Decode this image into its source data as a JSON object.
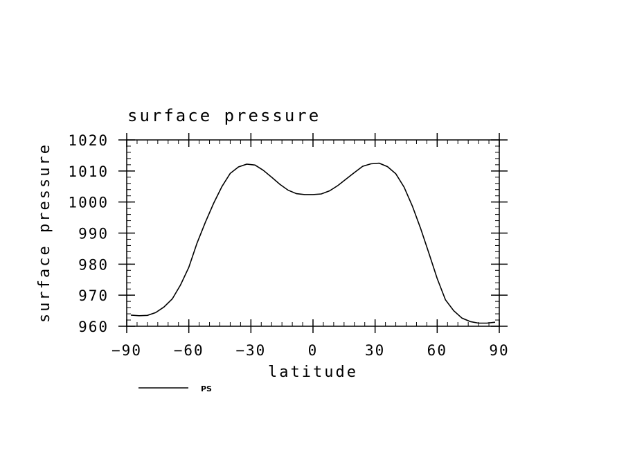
{
  "chart_data": {
    "type": "line",
    "title": "surface pressure",
    "xlabel": "latitude",
    "ylabel": "surface pressure",
    "xlim": [
      -90,
      90
    ],
    "ylim": [
      960,
      1020
    ],
    "xticks": [
      -90,
      -60,
      -30,
      0,
      30,
      60,
      90
    ],
    "xtick_labels": [
      "−90",
      "−60",
      "−30",
      "0",
      "30",
      "60",
      "90"
    ],
    "yticks": [
      960,
      970,
      980,
      990,
      1000,
      1010,
      1020
    ],
    "ytick_labels": [
      "960",
      "970",
      "980",
      "990",
      "1000",
      "1010",
      "1020"
    ],
    "grid": false,
    "legend_position": "bottom-left",
    "series": [
      {
        "name": "PS",
        "color": "#000000",
        "x": [
          -88,
          -84,
          -80,
          -76,
          -72,
          -68,
          -64,
          -60,
          -56,
          -52,
          -48,
          -44,
          -40,
          -36,
          -32,
          -28,
          -24,
          -20,
          -16,
          -12,
          -8,
          -4,
          0,
          4,
          8,
          12,
          16,
          20,
          24,
          28,
          32,
          36,
          40,
          44,
          48,
          52,
          56,
          60,
          64,
          68,
          72,
          76,
          80,
          84,
          88
        ],
        "y": [
          963.6,
          963.4,
          963.5,
          964.4,
          966.2,
          968.8,
          973.3,
          979.0,
          986.8,
          993.5,
          999.6,
          1005.0,
          1009.2,
          1011.3,
          1012.2,
          1011.9,
          1010.2,
          1008.0,
          1005.7,
          1003.8,
          1002.7,
          1002.4,
          1002.4,
          1002.6,
          1003.6,
          1005.3,
          1007.4,
          1009.5,
          1011.5,
          1012.3,
          1012.5,
          1011.4,
          1009.1,
          1004.8,
          998.7,
          991.5,
          983.5,
          975.4,
          968.5,
          965.0,
          962.6,
          961.5,
          961.0,
          961.0,
          961.3
        ]
      }
    ]
  }
}
